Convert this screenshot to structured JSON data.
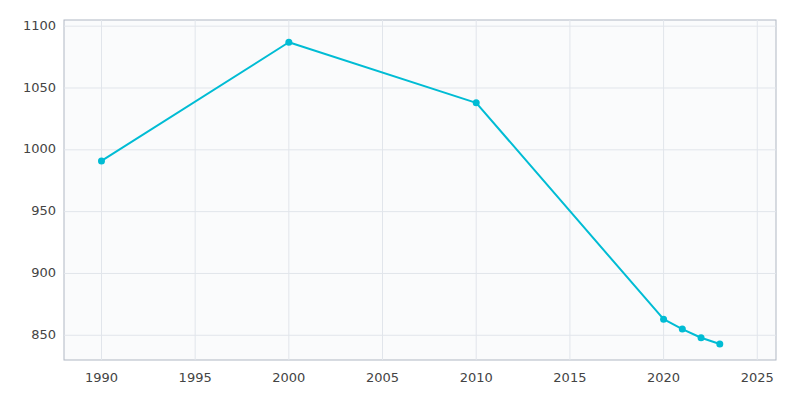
{
  "chart_data": {
    "type": "line",
    "x": [
      1990,
      2000,
      2010,
      2020,
      2021,
      2022,
      2023
    ],
    "values": [
      991,
      1087,
      1038,
      863,
      855,
      848,
      843
    ],
    "color": "#00BCD4",
    "marker": "circle",
    "xlim": [
      1988,
      2026
    ],
    "ylim": [
      830,
      1105
    ],
    "xticks": [
      1990,
      1995,
      2000,
      2005,
      2010,
      2015,
      2020,
      2025
    ],
    "yticks": [
      850,
      900,
      950,
      1000,
      1050,
      1100
    ],
    "grid": true
  }
}
